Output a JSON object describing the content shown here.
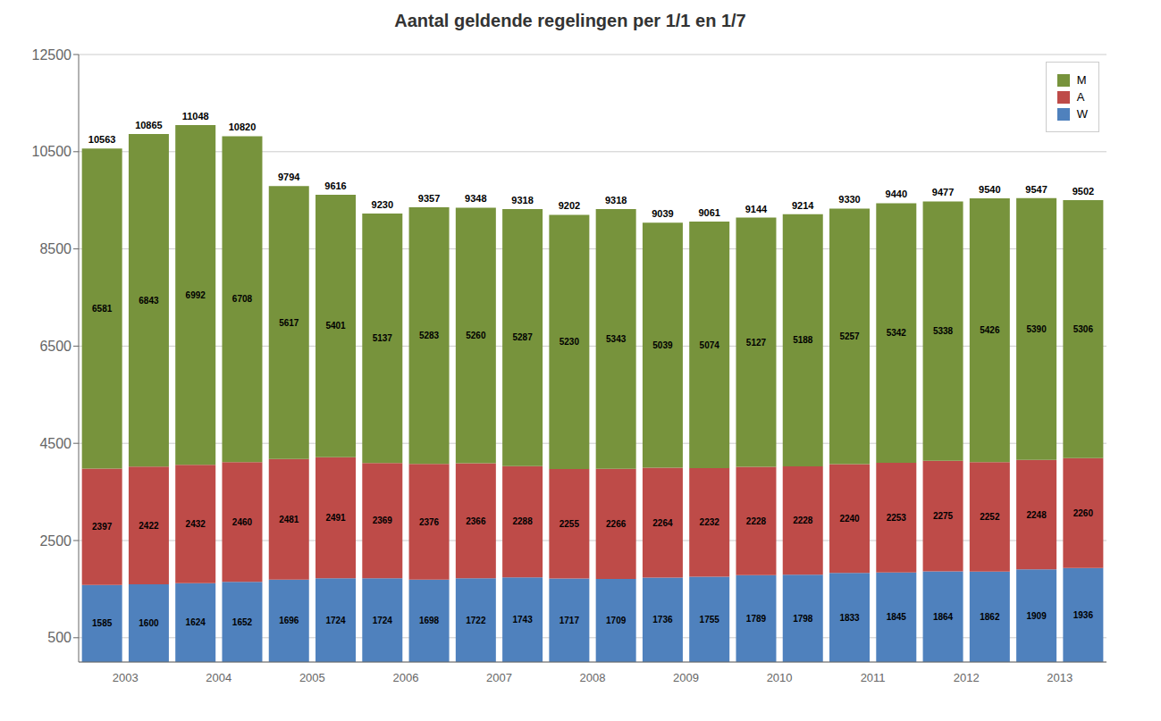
{
  "chart_data": {
    "type": "bar",
    "title": "Aantal geldende regelingen per 1/1 en 1/7",
    "categories": [
      "2003",
      null,
      "2004",
      null,
      "2005",
      null,
      "2006",
      null,
      "2007",
      null,
      "2008",
      null,
      "2009",
      null,
      "2010",
      null,
      "2011",
      null,
      "2012",
      null,
      "2013",
      null
    ],
    "series": [
      {
        "name": "W",
        "color": "#4F81BD",
        "values": [
          1585,
          1600,
          1624,
          1652,
          1696,
          1724,
          1724,
          1698,
          1722,
          1743,
          1717,
          1709,
          1736,
          1755,
          1789,
          1798,
          1833,
          1845,
          1864,
          1862,
          1909,
          1936
        ]
      },
      {
        "name": "A",
        "color": "#BE4B48",
        "values": [
          2397,
          2422,
          2432,
          2460,
          2481,
          2491,
          2369,
          2376,
          2366,
          2288,
          2255,
          2266,
          2264,
          2232,
          2228,
          2228,
          2240,
          2253,
          2275,
          2252,
          2248,
          2260
        ]
      },
      {
        "name": "M",
        "color": "#77933C",
        "values": [
          6581,
          6843,
          6992,
          6708,
          5617,
          5401,
          5137,
          5283,
          5260,
          5287,
          5230,
          5343,
          5039,
          5074,
          5127,
          5188,
          5257,
          5342,
          5338,
          5426,
          5390,
          5306
        ]
      }
    ],
    "totals": [
      10563,
      10865,
      11048,
      10820,
      9794,
      9616,
      9230,
      9357,
      9348,
      9318,
      9202,
      9318,
      9039,
      9061,
      9144,
      9214,
      9330,
      9440,
      9477,
      9540,
      9547,
      9502
    ],
    "stacked": true,
    "data_labels": true,
    "ylim": [
      0,
      12500
    ],
    "yticks": [
      500,
      2500,
      4500,
      6500,
      8500,
      10500,
      12500
    ],
    "grid": true,
    "legend": "upper right"
  }
}
